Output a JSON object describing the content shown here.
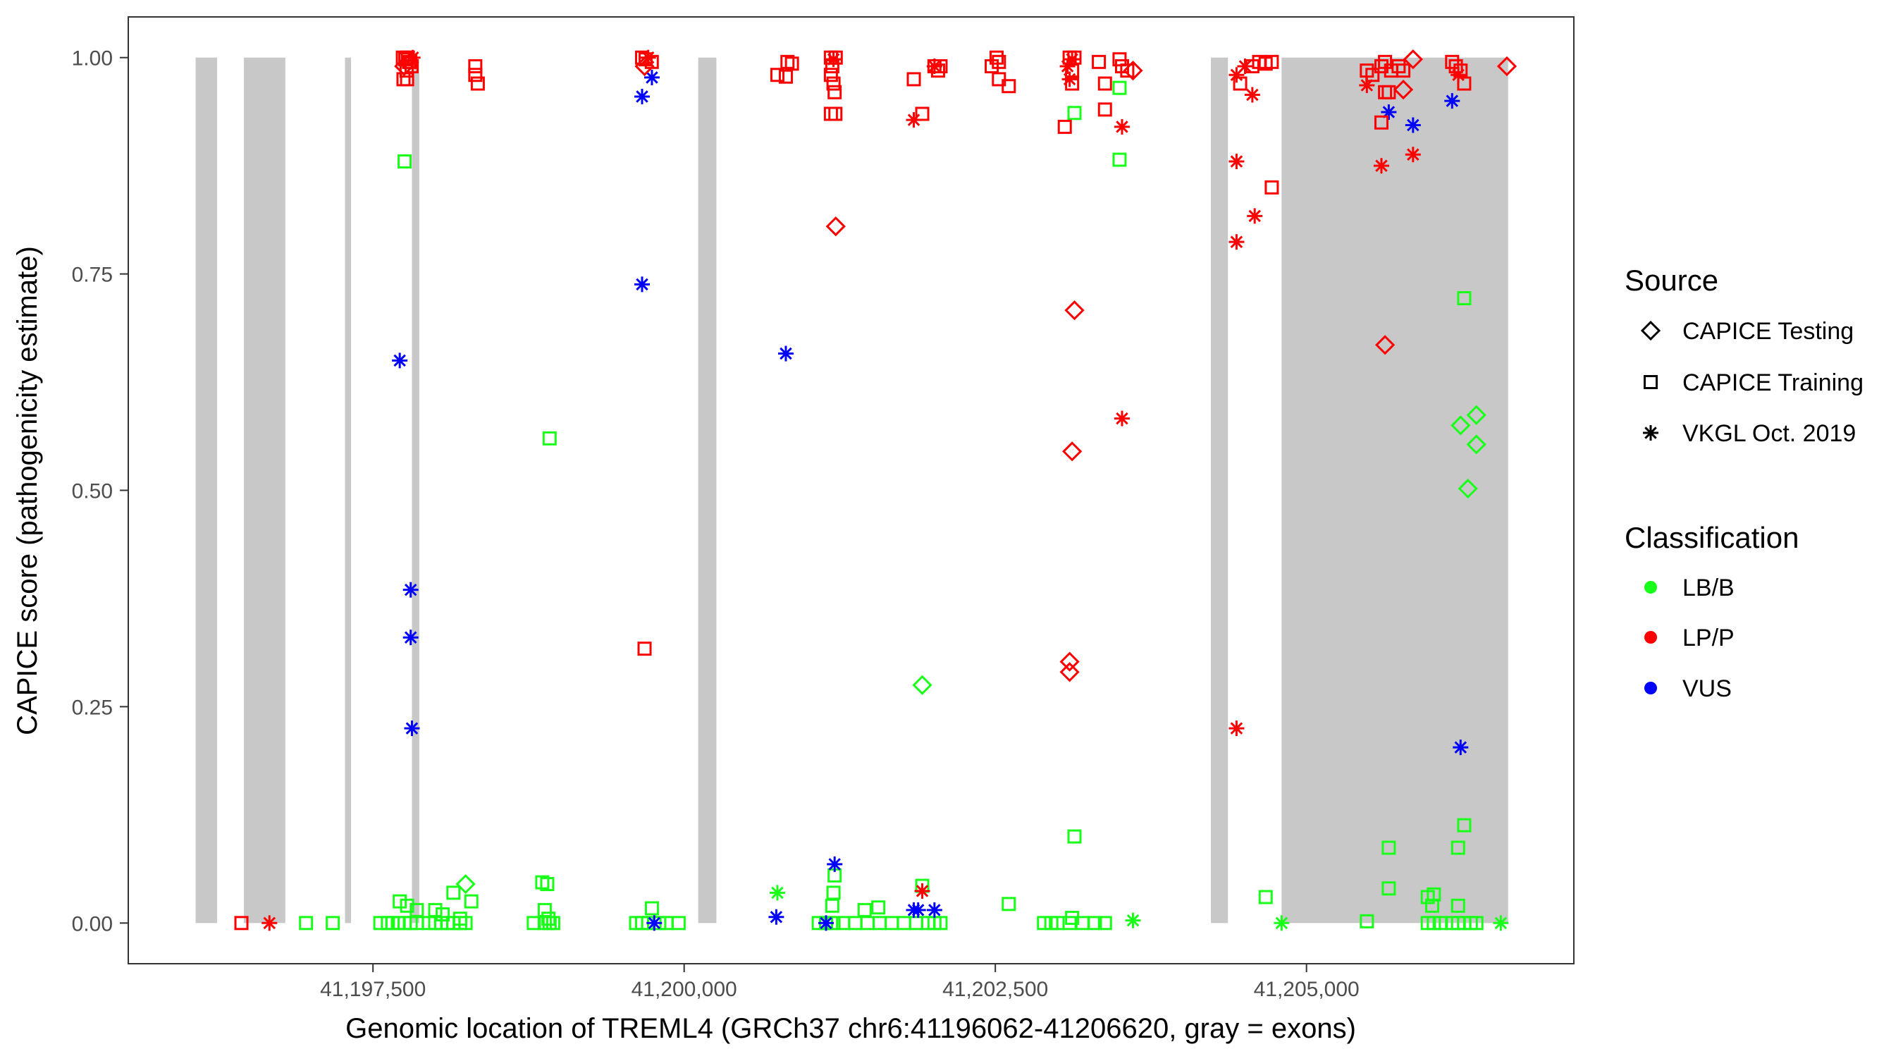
{
  "chart_data": {
    "type": "scatter",
    "xlabel": "Genomic location of TREML4 (GRCh37 chr6:41196062-41206620, gray = exons)",
    "ylabel": "CAPICE score (pathogenicity estimate)",
    "xlim": [
      41195534,
      41207148
    ],
    "ylim": [
      -0.047,
      1.047
    ],
    "x_ticks": [
      41197500,
      41200000,
      41202500,
      41205000
    ],
    "x_tick_labels": [
      "41,197,500",
      "41,200,000",
      "41,202,500",
      "41,205,000"
    ],
    "y_ticks": [
      0,
      0.25,
      0.5,
      0.75,
      1.0
    ],
    "y_tick_labels": [
      "0.00",
      "0.25",
      "0.50",
      "0.75",
      "1.00"
    ],
    "grid": false,
    "exons": [
      [
        41196075,
        41196248
      ],
      [
        41196463,
        41196796
      ],
      [
        41197275,
        41197324
      ],
      [
        41197813,
        41197872
      ],
      [
        41200113,
        41200259
      ],
      [
        41204232,
        41204369
      ],
      [
        41204800,
        41206620
      ]
    ],
    "exon_color": "#c8c8c8",
    "legend_position": "right",
    "legend": {
      "source_title": "Source",
      "source_items": [
        {
          "key": "D",
          "label": "CAPICE Testing",
          "shape": "diamond"
        },
        {
          "key": "S",
          "label": "CAPICE Training",
          "shape": "square"
        },
        {
          "key": "A",
          "label": "VKGL Oct. 2019",
          "shape": "asterisk"
        }
      ],
      "class_title": "Classification",
      "class_items": [
        {
          "key": "B",
          "label": "LB/B",
          "color": "#19ff19"
        },
        {
          "key": "P",
          "label": "LP/P",
          "color": "#ff0000"
        },
        {
          "key": "V",
          "label": "VUS",
          "color": "#0000ff"
        }
      ]
    },
    "point_fields": [
      "position",
      "score",
      "source",
      "classification"
    ],
    "points": [
      [
        41196443,
        0,
        "S",
        "P"
      ],
      [
        41196668,
        0,
        "A",
        "P"
      ],
      [
        41196962,
        0,
        "S",
        "B"
      ],
      [
        41197177,
        0,
        "S",
        "B"
      ],
      [
        41197559,
        0,
        "S",
        "B"
      ],
      [
        41197620,
        0,
        "S",
        "B"
      ],
      [
        41197657,
        0,
        "S",
        "B"
      ],
      [
        41197700,
        0,
        "S",
        "B"
      ],
      [
        41197754,
        0,
        "S",
        "B"
      ],
      [
        41197803,
        0,
        "S",
        "B"
      ],
      [
        41197852,
        0,
        "S",
        "B"
      ],
      [
        41197950,
        0,
        "S",
        "B"
      ],
      [
        41198000,
        0,
        "S",
        "B"
      ],
      [
        41198048,
        0,
        "S",
        "B"
      ],
      [
        41198100,
        0,
        "S",
        "B"
      ],
      [
        41198146,
        0,
        "S",
        "B"
      ],
      [
        41198200,
        0,
        "S",
        "B"
      ],
      [
        41198244,
        0,
        "S",
        "B"
      ],
      [
        41197715,
        0.025,
        "S",
        "B"
      ],
      [
        41197774,
        0.02,
        "S",
        "B"
      ],
      [
        41197852,
        0.015,
        "S",
        "B"
      ],
      [
        41198000,
        0.015,
        "S",
        "B"
      ],
      [
        41198060,
        0.01,
        "S",
        "B"
      ],
      [
        41198146,
        0.035,
        "S",
        "B"
      ],
      [
        41198244,
        0.045,
        "D",
        "B"
      ],
      [
        41198290,
        0.025,
        "S",
        "B"
      ],
      [
        41198200,
        0.005,
        "S",
        "B"
      ],
      [
        41197754,
        0.88,
        "S",
        "B"
      ],
      [
        41197715,
        0.65,
        "A",
        "V"
      ],
      [
        41197803,
        0.385,
        "A",
        "V"
      ],
      [
        41197803,
        0.33,
        "A",
        "V"
      ],
      [
        41197813,
        0.225,
        "A",
        "V"
      ],
      [
        41197740,
        1.0,
        "S",
        "P"
      ],
      [
        41197760,
        0.998,
        "S",
        "P"
      ],
      [
        41197780,
        1.0,
        "S",
        "P"
      ],
      [
        41197800,
        0.995,
        "S",
        "P"
      ],
      [
        41197820,
        1.0,
        "A",
        "P"
      ],
      [
        41197750,
        0.99,
        "D",
        "P"
      ],
      [
        41197790,
        0.995,
        "S",
        "P"
      ],
      [
        41197770,
        0.985,
        "S",
        "P"
      ],
      [
        41197810,
        0.99,
        "S",
        "P"
      ],
      [
        41197774,
        0.975,
        "S",
        "P"
      ],
      [
        41197745,
        0.975,
        "S",
        "P"
      ],
      [
        41198322,
        0.99,
        "S",
        "P"
      ],
      [
        41198322,
        0.98,
        "S",
        "P"
      ],
      [
        41198342,
        0.97,
        "S",
        "P"
      ],
      [
        41198919,
        0.56,
        "S",
        "B"
      ],
      [
        41198792,
        0,
        "S",
        "B"
      ],
      [
        41198880,
        0,
        "S",
        "B"
      ],
      [
        41198919,
        0,
        "S",
        "B"
      ],
      [
        41198948,
        0,
        "S",
        "B"
      ],
      [
        41198860,
        0.047,
        "S",
        "B"
      ],
      [
        41198900,
        0.045,
        "S",
        "B"
      ],
      [
        41198880,
        0.015,
        "S",
        "B"
      ],
      [
        41198910,
        0.005,
        "S",
        "B"
      ],
      [
        41199662,
        1.0,
        "S",
        "P"
      ],
      [
        41199690,
        0.998,
        "S",
        "P"
      ],
      [
        41199711,
        1.0,
        "A",
        "P"
      ],
      [
        41199740,
        0.995,
        "S",
        "P"
      ],
      [
        41199682,
        0.99,
        "D",
        "P"
      ],
      [
        41199662,
        0.955,
        "A",
        "V"
      ],
      [
        41199741,
        0.977,
        "A",
        "V"
      ],
      [
        41199662,
        0.738,
        "A",
        "V"
      ],
      [
        41199682,
        0.317,
        "S",
        "P"
      ],
      [
        41199614,
        0,
        "S",
        "B"
      ],
      [
        41199662,
        0,
        "S",
        "B"
      ],
      [
        41199711,
        0,
        "S",
        "B"
      ],
      [
        41199800,
        0,
        "S",
        "B"
      ],
      [
        41199858,
        0,
        "S",
        "B"
      ],
      [
        41199956,
        0,
        "S",
        "B"
      ],
      [
        41199741,
        0.017,
        "S",
        "B"
      ],
      [
        41199760,
        0,
        "A",
        "V"
      ],
      [
        41200749,
        0.98,
        "S",
        "P"
      ],
      [
        41200817,
        0.978,
        "S",
        "P"
      ],
      [
        41200830,
        0.995,
        "S",
        "P"
      ],
      [
        41200866,
        0.993,
        "S",
        "P"
      ],
      [
        41200817,
        0.658,
        "A",
        "V"
      ],
      [
        41200749,
        0.035,
        "A",
        "B"
      ],
      [
        41200740,
        0.007,
        "A",
        "V"
      ],
      [
        41201179,
        1.0,
        "S",
        "P"
      ],
      [
        41201200,
        0.998,
        "A",
        "P"
      ],
      [
        41201218,
        1.0,
        "S",
        "P"
      ],
      [
        41201190,
        0.99,
        "S",
        "P"
      ],
      [
        41201179,
        0.98,
        "S",
        "P"
      ],
      [
        41201200,
        0.97,
        "S",
        "P"
      ],
      [
        41201209,
        0.96,
        "S",
        "P"
      ],
      [
        41201179,
        0.935,
        "S",
        "P"
      ],
      [
        41201215,
        0.935,
        "S",
        "P"
      ],
      [
        41201218,
        0.805,
        "D",
        "P"
      ],
      [
        41201081,
        0,
        "S",
        "B"
      ],
      [
        41201140,
        0,
        "S",
        "B"
      ],
      [
        41201200,
        0,
        "S",
        "B"
      ],
      [
        41201277,
        0,
        "S",
        "B"
      ],
      [
        41201375,
        0,
        "S",
        "B"
      ],
      [
        41201473,
        0,
        "S",
        "B"
      ],
      [
        41201571,
        0,
        "S",
        "B"
      ],
      [
        41201668,
        0,
        "S",
        "B"
      ],
      [
        41201766,
        0,
        "S",
        "B"
      ],
      [
        41201864,
        0,
        "S",
        "B"
      ],
      [
        41201960,
        0,
        "S",
        "B"
      ],
      [
        41202011,
        0,
        "S",
        "B"
      ],
      [
        41202060,
        0,
        "S",
        "B"
      ],
      [
        41201190,
        0.02,
        "S",
        "B"
      ],
      [
        41201200,
        0.035,
        "S",
        "B"
      ],
      [
        41201209,
        0.055,
        "S",
        "B"
      ],
      [
        41201450,
        0.015,
        "S",
        "B"
      ],
      [
        41201560,
        0.018,
        "S",
        "B"
      ],
      [
        41201209,
        0.068,
        "A",
        "V"
      ],
      [
        41201140,
        0,
        "A",
        "V"
      ],
      [
        41201845,
        0.975,
        "S",
        "P"
      ],
      [
        41201913,
        0.935,
        "S",
        "P"
      ],
      [
        41201845,
        0.928,
        "A",
        "P"
      ],
      [
        41202011,
        0.99,
        "S",
        "P"
      ],
      [
        41202060,
        0.99,
        "S",
        "P"
      ],
      [
        41202011,
        0.99,
        "A",
        "P"
      ],
      [
        41202040,
        0.985,
        "S",
        "P"
      ],
      [
        41201913,
        0.275,
        "D",
        "B"
      ],
      [
        41201913,
        0.037,
        "A",
        "P"
      ],
      [
        41201913,
        0.043,
        "S",
        "B"
      ],
      [
        41201845,
        0.015,
        "A",
        "V"
      ],
      [
        41201880,
        0.015,
        "A",
        "V"
      ],
      [
        41202011,
        0.015,
        "A",
        "V"
      ],
      [
        41202471,
        0.99,
        "S",
        "P"
      ],
      [
        41202510,
        1.0,
        "S",
        "P"
      ],
      [
        41202529,
        0.995,
        "S",
        "P"
      ],
      [
        41202529,
        0.975,
        "S",
        "P"
      ],
      [
        41202608,
        0.967,
        "S",
        "P"
      ],
      [
        41202608,
        0.022,
        "S",
        "B"
      ],
      [
        41203097,
        1.0,
        "S",
        "P"
      ],
      [
        41203117,
        0.998,
        "A",
        "P"
      ],
      [
        41203136,
        1.0,
        "S",
        "P"
      ],
      [
        41203080,
        0.99,
        "A",
        "P"
      ],
      [
        41203117,
        0.985,
        "S",
        "P"
      ],
      [
        41203097,
        0.975,
        "A",
        "P"
      ],
      [
        41203117,
        0.97,
        "S",
        "P"
      ],
      [
        41203136,
        0.708,
        "D",
        "P"
      ],
      [
        41203117,
        0.545,
        "D",
        "P"
      ],
      [
        41203097,
        0.302,
        "D",
        "P"
      ],
      [
        41203097,
        0.29,
        "D",
        "P"
      ],
      [
        41203058,
        0.92,
        "S",
        "P"
      ],
      [
        41203136,
        0.936,
        "S",
        "B"
      ],
      [
        41203136,
        0.1,
        "S",
        "B"
      ],
      [
        41202891,
        0,
        "S",
        "B"
      ],
      [
        41202950,
        0,
        "S",
        "B"
      ],
      [
        41203000,
        0,
        "S",
        "B"
      ],
      [
        41203097,
        0,
        "S",
        "B"
      ],
      [
        41203117,
        0.006,
        "S",
        "B"
      ],
      [
        41203200,
        0,
        "S",
        "B"
      ],
      [
        41203300,
        0,
        "S",
        "B"
      ],
      [
        41203381,
        0,
        "S",
        "B"
      ],
      [
        41203606,
        0.003,
        "A",
        "B"
      ],
      [
        41203332,
        0.995,
        "S",
        "P"
      ],
      [
        41203498,
        0.998,
        "S",
        "P"
      ],
      [
        41203518,
        0.99,
        "S",
        "P"
      ],
      [
        41203560,
        0.985,
        "S",
        "P"
      ],
      [
        41203381,
        0.94,
        "S",
        "P"
      ],
      [
        41203381,
        0.97,
        "S",
        "P"
      ],
      [
        41203498,
        0.965,
        "S",
        "B"
      ],
      [
        41203498,
        0.882,
        "S",
        "B"
      ],
      [
        41203518,
        0.92,
        "A",
        "P"
      ],
      [
        41203518,
        0.583,
        "A",
        "P"
      ],
      [
        41203606,
        0.985,
        "D",
        "P"
      ],
      [
        41204438,
        0.98,
        "A",
        "P"
      ],
      [
        41204438,
        0.88,
        "A",
        "P"
      ],
      [
        41204438,
        0.787,
        "A",
        "P"
      ],
      [
        41204438,
        0.225,
        "A",
        "P"
      ],
      [
        41204565,
        0.957,
        "A",
        "P"
      ],
      [
        41204584,
        0.817,
        "A",
        "P"
      ],
      [
        41204467,
        0.97,
        "S",
        "P"
      ],
      [
        41204506,
        0.99,
        "A",
        "P"
      ],
      [
        41204565,
        0.99,
        "S",
        "P"
      ],
      [
        41204620,
        0.995,
        "S",
        "P"
      ],
      [
        41204672,
        0.993,
        "S",
        "P"
      ],
      [
        41204721,
        0.995,
        "S",
        "P"
      ],
      [
        41204721,
        0.85,
        "S",
        "P"
      ],
      [
        41204672,
        0.03,
        "S",
        "B"
      ],
      [
        41204800,
        0,
        "A",
        "B"
      ],
      [
        41205485,
        0.985,
        "S",
        "P"
      ],
      [
        41205530,
        0.98,
        "S",
        "P"
      ],
      [
        41205602,
        0.99,
        "S",
        "P"
      ],
      [
        41205631,
        0.995,
        "S",
        "P"
      ],
      [
        41205680,
        0.985,
        "S",
        "P"
      ],
      [
        41205740,
        0.99,
        "S",
        "P"
      ],
      [
        41205778,
        0.985,
        "S",
        "P"
      ],
      [
        41205631,
        0.96,
        "S",
        "P"
      ],
      [
        41205661,
        0.96,
        "S",
        "P"
      ],
      [
        41205485,
        0.968,
        "A",
        "P"
      ],
      [
        41205602,
        0.875,
        "A",
        "P"
      ],
      [
        41205856,
        0.888,
        "A",
        "P"
      ],
      [
        41205661,
        0.937,
        "A",
        "V"
      ],
      [
        41205856,
        0.922,
        "A",
        "V"
      ],
      [
        41205631,
        0.668,
        "D",
        "P"
      ],
      [
        41205778,
        0.963,
        "D",
        "P"
      ],
      [
        41205856,
        0.998,
        "D",
        "P"
      ],
      [
        41205602,
        0.925,
        "S",
        "P"
      ],
      [
        41205661,
        0.087,
        "S",
        "B"
      ],
      [
        41205661,
        0.04,
        "S",
        "B"
      ],
      [
        41205485,
        0.002,
        "S",
        "B"
      ],
      [
        41205974,
        0.03,
        "S",
        "B"
      ],
      [
        41206023,
        0.033,
        "S",
        "B"
      ],
      [
        41206010,
        0.02,
        "S",
        "B"
      ],
      [
        41206170,
        0.995,
        "S",
        "P"
      ],
      [
        41206200,
        0.99,
        "S",
        "P"
      ],
      [
        41206238,
        0.985,
        "S",
        "P"
      ],
      [
        41206267,
        0.97,
        "S",
        "P"
      ],
      [
        41206220,
        0.98,
        "A",
        "P"
      ],
      [
        41206170,
        0.95,
        "A",
        "V"
      ],
      [
        41206238,
        0.203,
        "A",
        "V"
      ],
      [
        41206267,
        0.722,
        "S",
        "B"
      ],
      [
        41206238,
        0.575,
        "D",
        "B"
      ],
      [
        41206365,
        0.587,
        "D",
        "B"
      ],
      [
        41206365,
        0.553,
        "D",
        "B"
      ],
      [
        41206297,
        0.502,
        "D",
        "B"
      ],
      [
        41206267,
        0.113,
        "S",
        "B"
      ],
      [
        41206218,
        0.087,
        "S",
        "B"
      ],
      [
        41206218,
        0.02,
        "S",
        "B"
      ],
      [
        41205974,
        0,
        "S",
        "B"
      ],
      [
        41206023,
        0,
        "S",
        "B"
      ],
      [
        41206080,
        0,
        "S",
        "B"
      ],
      [
        41206170,
        0,
        "S",
        "B"
      ],
      [
        41206218,
        0,
        "S",
        "B"
      ],
      [
        41206267,
        0,
        "S",
        "B"
      ],
      [
        41206320,
        0,
        "S",
        "B"
      ],
      [
        41206365,
        0,
        "S",
        "B"
      ],
      [
        41206610,
        0.99,
        "D",
        "P"
      ],
      [
        41206561,
        0,
        "A",
        "B"
      ]
    ]
  }
}
